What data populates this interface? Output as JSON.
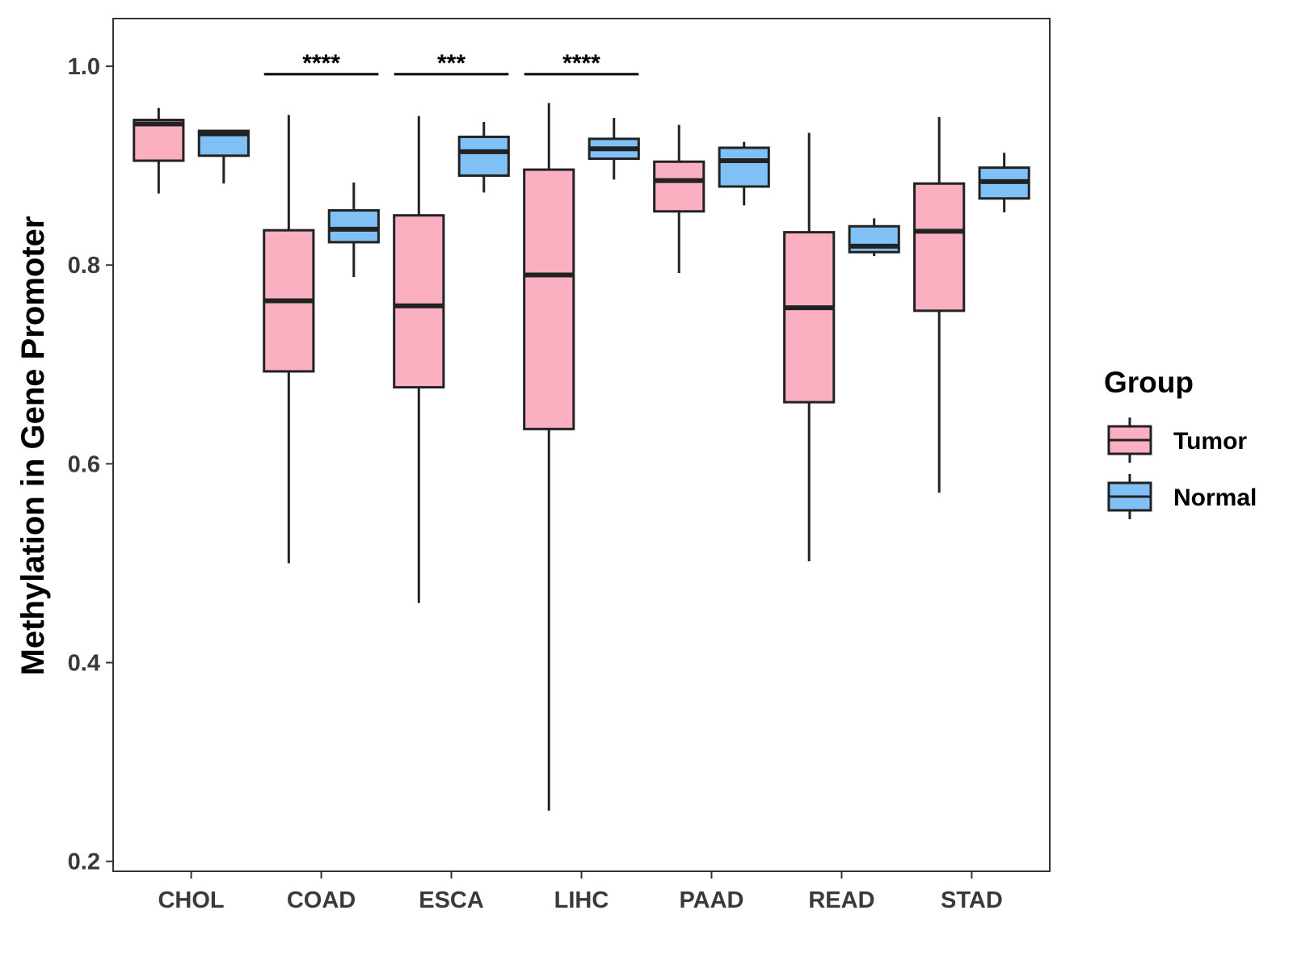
{
  "chart_data": {
    "type": "boxplot",
    "title": "",
    "xlabel": "",
    "ylabel": "Methylation in Gene Promoter",
    "ylim": [
      0.19,
      1.048
    ],
    "yticks": [
      0.2,
      0.4,
      0.6,
      0.8,
      1.0
    ],
    "ytick_labels": [
      "0.2",
      "0.4",
      "0.6",
      "0.8",
      "1.0"
    ],
    "categories": [
      "CHOL",
      "COAD",
      "ESCA",
      "LIHC",
      "PAAD",
      "READ",
      "STAD"
    ],
    "grid": false,
    "legend": {
      "title": "Group",
      "position": "right",
      "entries": [
        {
          "name": "Tumor",
          "color": "#fbb0c2"
        },
        {
          "name": "Normal",
          "color": "#7fc1f7"
        }
      ]
    },
    "series": [
      {
        "name": "Tumor",
        "color": "#fbb0c2",
        "boxes": [
          {
            "category": "CHOL",
            "min": 0.872,
            "q1": 0.905,
            "median": 0.942,
            "q3": 0.946,
            "max": 0.958
          },
          {
            "category": "COAD",
            "min": 0.5,
            "q1": 0.693,
            "median": 0.764,
            "q3": 0.835,
            "max": 0.951
          },
          {
            "category": "ESCA",
            "min": 0.46,
            "q1": 0.677,
            "median": 0.759,
            "q3": 0.85,
            "max": 0.95
          },
          {
            "category": "LIHC",
            "min": 0.251,
            "q1": 0.635,
            "median": 0.79,
            "q3": 0.896,
            "max": 0.963
          },
          {
            "category": "PAAD",
            "min": 0.792,
            "q1": 0.854,
            "median": 0.885,
            "q3": 0.904,
            "max": 0.941
          },
          {
            "category": "READ",
            "min": 0.502,
            "q1": 0.662,
            "median": 0.757,
            "q3": 0.833,
            "max": 0.933
          },
          {
            "category": "STAD",
            "min": 0.571,
            "q1": 0.754,
            "median": 0.834,
            "q3": 0.882,
            "max": 0.949
          }
        ]
      },
      {
        "name": "Normal",
        "color": "#7fc1f7",
        "boxes": [
          {
            "category": "CHOL",
            "min": 0.882,
            "q1": 0.91,
            "median": 0.932,
            "q3": 0.935,
            "max": 0.935
          },
          {
            "category": "COAD",
            "min": 0.788,
            "q1": 0.823,
            "median": 0.836,
            "q3": 0.855,
            "max": 0.883
          },
          {
            "category": "ESCA",
            "min": 0.873,
            "q1": 0.89,
            "median": 0.914,
            "q3": 0.929,
            "max": 0.944
          },
          {
            "category": "LIHC",
            "min": 0.886,
            "q1": 0.907,
            "median": 0.917,
            "q3": 0.927,
            "max": 0.948
          },
          {
            "category": "PAAD",
            "min": 0.86,
            "q1": 0.879,
            "median": 0.905,
            "q3": 0.918,
            "max": 0.924
          },
          {
            "category": "READ",
            "min": 0.809,
            "q1": 0.813,
            "median": 0.819,
            "q3": 0.839,
            "max": 0.847
          },
          {
            "category": "STAD",
            "min": 0.853,
            "q1": 0.867,
            "median": 0.884,
            "q3": 0.898,
            "max": 0.913
          }
        ]
      }
    ],
    "annotations": [
      {
        "category": "COAD",
        "label": "****",
        "y": 0.992
      },
      {
        "category": "ESCA",
        "label": "***",
        "y": 0.992
      },
      {
        "category": "LIHC",
        "label": "****",
        "y": 0.992
      }
    ]
  }
}
